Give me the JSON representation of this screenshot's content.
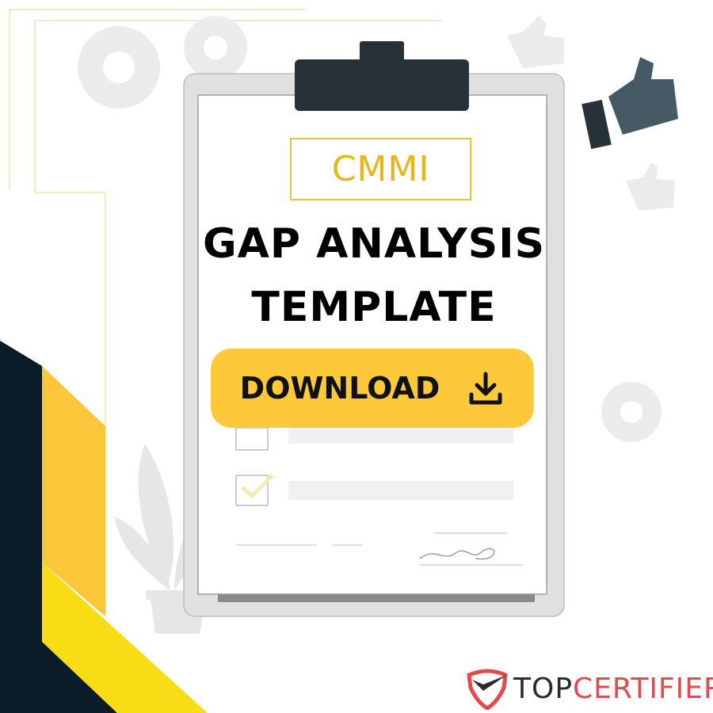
{
  "badge": "CMMI",
  "title_line1": "GAP ANALYSIS",
  "title_line2": "TEMPLATE",
  "download_label": "DOWNLOAD",
  "download_icon": "download-icon",
  "brand": {
    "part1": "TOP",
    "part2": "CERTIFIER"
  },
  "colors": {
    "dark": "#0b1c28",
    "orange": "#fcc63a",
    "yellow": "#f8dc16",
    "button": "#fdc93a",
    "brand_red": "#e5484d"
  }
}
